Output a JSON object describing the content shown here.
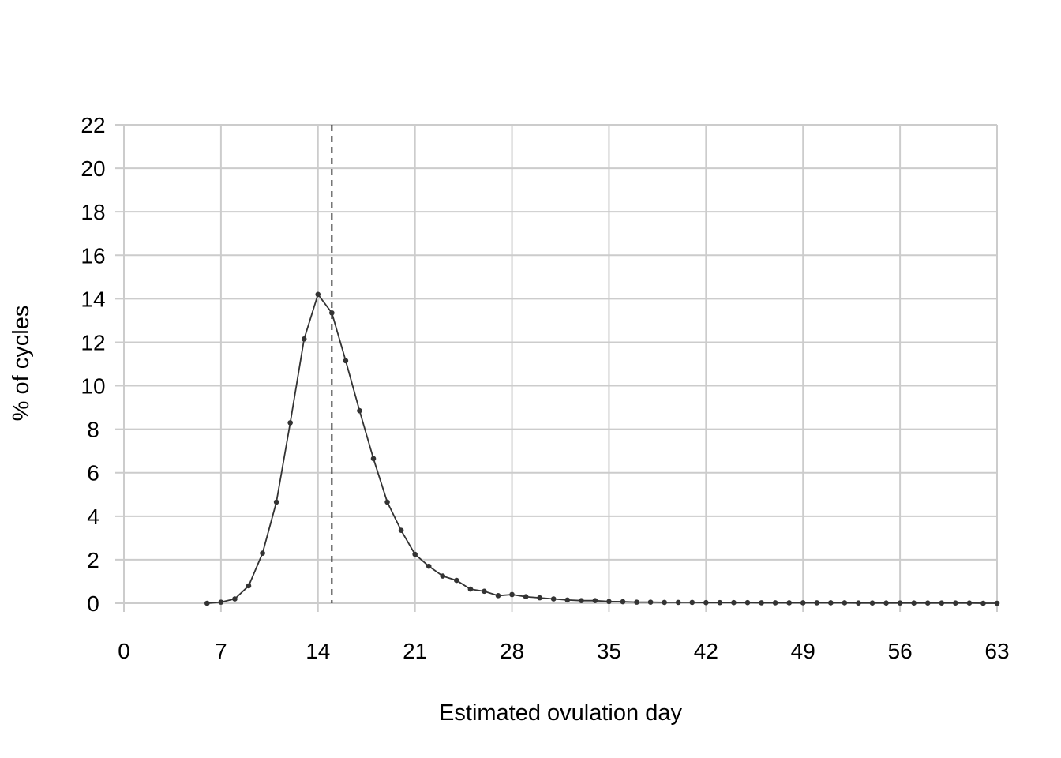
{
  "chart_data": {
    "type": "line",
    "title": "",
    "xlabel": "Estimated ovulation day",
    "ylabel": "% of cycles",
    "xlim": [
      0,
      63
    ],
    "ylim": [
      0,
      22
    ],
    "xticks": [
      0,
      7,
      14,
      21,
      28,
      35,
      42,
      49,
      56,
      63
    ],
    "yticks": [
      0,
      2,
      4,
      6,
      8,
      10,
      12,
      14,
      16,
      18,
      20,
      22
    ],
    "grid": true,
    "legend": "none",
    "reference_line": {
      "x": 15,
      "style": "dashed"
    },
    "series": [
      {
        "x": [
          6,
          7,
          8,
          9,
          10,
          11,
          12,
          13,
          14,
          15,
          16,
          17,
          18,
          19,
          20,
          21,
          22,
          23,
          24,
          25,
          26,
          27,
          28,
          29,
          30,
          31,
          32,
          33,
          34,
          35,
          36,
          37,
          38,
          39,
          40,
          41,
          42,
          43,
          44,
          45,
          46,
          47,
          48,
          49,
          50,
          51,
          52,
          53,
          54,
          55,
          56,
          57,
          58,
          59,
          60,
          61,
          62,
          63
        ],
        "y": [
          0.0,
          0.05,
          0.2,
          0.8,
          2.3,
          4.65,
          8.3,
          12.15,
          14.2,
          13.35,
          11.15,
          8.85,
          6.65,
          4.65,
          3.35,
          2.25,
          1.7,
          1.25,
          1.05,
          0.65,
          0.55,
          0.35,
          0.4,
          0.3,
          0.25,
          0.2,
          0.15,
          0.12,
          0.12,
          0.08,
          0.07,
          0.05,
          0.05,
          0.04,
          0.04,
          0.04,
          0.03,
          0.03,
          0.03,
          0.03,
          0.02,
          0.02,
          0.02,
          0.02,
          0.02,
          0.02,
          0.02,
          0.01,
          0.01,
          0.01,
          0.01,
          0.01,
          0.01,
          0.01,
          0.01,
          0.01,
          0.0,
          0.0
        ]
      }
    ],
    "colors": {
      "grid": "#cccccc",
      "line": "#333333",
      "point": "#333333",
      "reference": "#333333"
    }
  }
}
